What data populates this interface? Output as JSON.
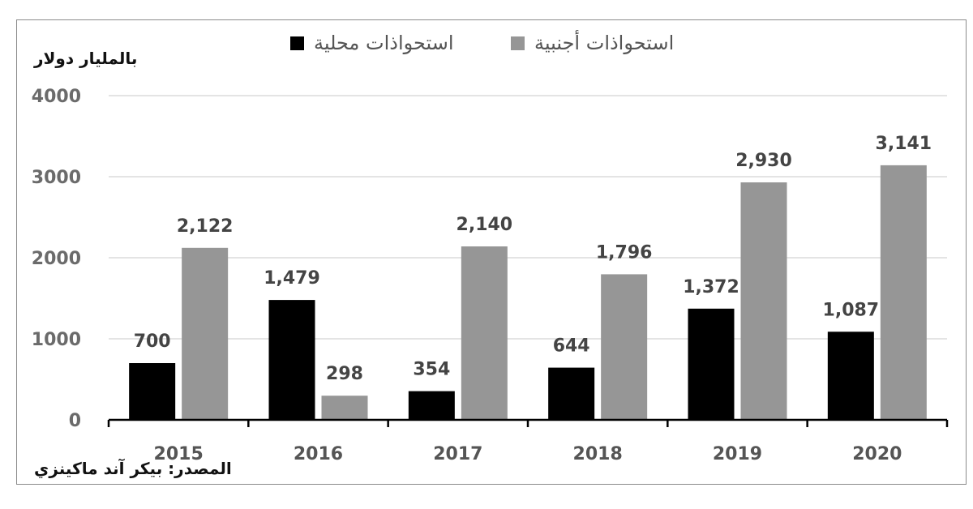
{
  "chart_data": {
    "type": "bar",
    "title": "",
    "xlabel": "",
    "ylabel": "بالمليار دولار",
    "ylim": [
      0,
      4000
    ],
    "yticks": [
      0,
      1000,
      2000,
      3000,
      4000
    ],
    "grid": true,
    "legend_position": "top",
    "categories": [
      "2015",
      "2016",
      "2017",
      "2018",
      "2019",
      "2020"
    ],
    "series": [
      {
        "name": "استحواذات محلية",
        "color": "#000000",
        "values": [
          700,
          1479,
          354,
          644,
          1372,
          1087
        ],
        "labels": [
          "700",
          "1,479",
          "354",
          "644",
          "1,372",
          "1,087"
        ]
      },
      {
        "name": "استحواذات أجنبية",
        "color": "#969696",
        "values": [
          2122,
          298,
          2140,
          1796,
          2930,
          3141
        ],
        "labels": [
          "2,122",
          "298",
          "2,140",
          "1,796",
          "2,930",
          "3,141"
        ]
      }
    ],
    "source": "المصدر: بيكر آند ماكينزي"
  },
  "legend": {
    "domestic_label": "استحواذات محلية",
    "foreign_label": "استحواذات أجنبية"
  },
  "unit_label": "بالمليار دولار",
  "source_label": "المصدر: بيكر آند ماكينزي",
  "colors": {
    "domestic": "#000000",
    "foreign": "#969696",
    "grid": "#dcdcdc",
    "axis": "#000000"
  }
}
